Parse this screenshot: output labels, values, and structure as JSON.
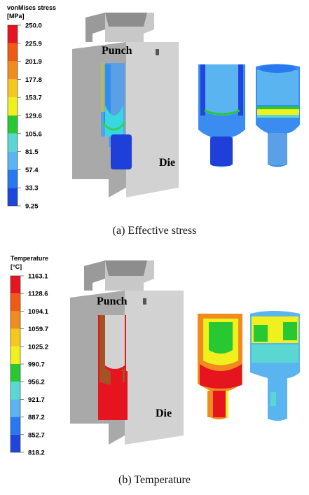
{
  "panel_a": {
    "legend": {
      "title": "vonMises stress",
      "unit": "[MPa]",
      "ticks": [
        "250.0",
        "225.9",
        "201.9",
        "177.8",
        "153.7",
        "129.6",
        "105.6",
        "81.5",
        "57.4",
        "33.3",
        "9.25"
      ],
      "colors": [
        "#e6141e",
        "#ef5a14",
        "#f08c1e",
        "#f5c81e",
        "#f0f01e",
        "#28c832",
        "#5ad7d2",
        "#5ab4f0",
        "#2878f0",
        "#1e46dc",
        "#1414c8"
      ]
    },
    "labels": {
      "punch": "Punch",
      "die": "Die"
    },
    "caption": "(a) Effective stress"
  },
  "panel_b": {
    "legend": {
      "title": "Temperature",
      "unit": "[°C]",
      "ticks": [
        "1163.1",
        "1128.6",
        "1094.1",
        "1059.7",
        "1025.2",
        "990.7",
        "956.2",
        "921.7",
        "887.2",
        "852.7",
        "818.2"
      ],
      "colors": [
        "#e6141e",
        "#ef5a14",
        "#f08c1e",
        "#f5c81e",
        "#f0f01e",
        "#28c832",
        "#5ad7d2",
        "#5ab4f0",
        "#2878f0",
        "#1e46dc",
        "#1414c8"
      ]
    },
    "labels": {
      "punch": "Punch",
      "die": "Die"
    },
    "caption": "(b) Temperature"
  }
}
